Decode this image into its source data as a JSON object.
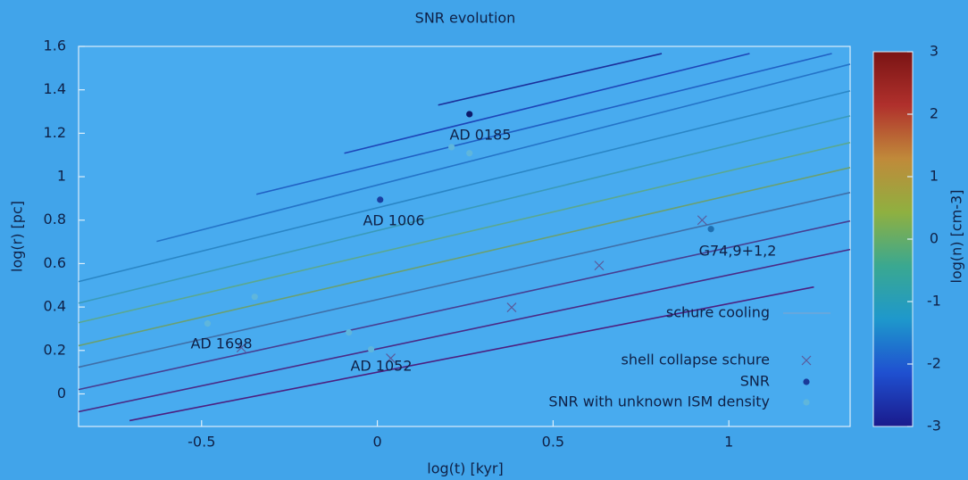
{
  "chart_data": {
    "type": "line",
    "title": "SNR evolution",
    "x_label": "log(t) [kyr]",
    "y_label": "log(r) [pc]",
    "xlim": [
      -0.85,
      1.345
    ],
    "ylim": [
      -0.15,
      1.6
    ],
    "xticks": [
      -0.5,
      0,
      0.5,
      1
    ],
    "yticks": [
      0,
      0.2,
      0.4,
      0.6,
      0.8,
      1,
      1.2,
      1.4,
      1.6
    ],
    "grid": false,
    "legend": "lower right",
    "series": [
      {
        "name": "schure cooling",
        "type": "line",
        "color": "#1b2f9a",
        "x": [
          0.173,
          0.809
        ],
        "values": [
          1.33,
          1.567
        ]
      },
      {
        "type": "line",
        "color": "#1d45b8",
        "x": [
          -0.094,
          1.059
        ],
        "values": [
          1.108,
          1.567
        ]
      },
      {
        "type": "line",
        "color": "#2060c4",
        "x": [
          -0.344,
          1.293
        ],
        "values": [
          0.919,
          1.567
        ]
      },
      {
        "type": "line",
        "color": "#2474c8",
        "x": [
          -0.628,
          1.345
        ],
        "values": [
          0.702,
          1.518
        ]
      },
      {
        "type": "line",
        "color": "#2a86c6",
        "x": [
          -0.85,
          1.345
        ],
        "values": [
          0.517,
          1.395
        ]
      },
      {
        "type": "line",
        "color": "#3a9ab8",
        "x": [
          -0.85,
          1.345
        ],
        "values": [
          0.418,
          1.28
        ]
      },
      {
        "type": "line",
        "color": "#5aa890",
        "x": [
          -0.85,
          1.345
        ],
        "values": [
          0.328,
          1.157
        ]
      },
      {
        "type": "line",
        "color": "#6aa070",
        "x": [
          -0.85,
          1.345
        ],
        "values": [
          0.222,
          1.042
        ]
      },
      {
        "type": "line",
        "color": "#3f6fa8",
        "x": [
          -0.85,
          1.345
        ],
        "values": [
          0.123,
          0.927
        ]
      },
      {
        "type": "line",
        "color": "#473e92",
        "x": [
          -0.85,
          1.345
        ],
        "values": [
          0.02,
          0.796
        ]
      },
      {
        "type": "line",
        "color": "#4a2a86",
        "x": [
          -0.85,
          1.345
        ],
        "values": [
          -0.082,
          0.665
        ]
      },
      {
        "type": "line",
        "color": "#4c1f80",
        "x": [
          -0.705,
          1.242
        ],
        "values": [
          -0.123,
          0.492
        ]
      },
      {
        "name": "shell collapse schure",
        "type": "scatter",
        "marker": "x",
        "color": "#5a5a9a",
        "x": [
          0.631,
          0.382,
          0.038,
          -0.387,
          0.924
        ],
        "values": [
          0.591,
          0.398,
          0.164,
          0.213,
          0.8
        ]
      },
      {
        "name": "SNR",
        "type": "scatter",
        "marker": "dot",
        "color": "#1a3a9a",
        "colors": [
          "#0d1a6b",
          "#1a3fa0",
          "#1f6fb0"
        ],
        "x": [
          0.262,
          0.008,
          0.949
        ],
        "values": [
          1.288,
          0.894,
          0.759
        ]
      },
      {
        "name": "SNR with unknown ISM density",
        "type": "scatter",
        "marker": "dot",
        "color": "#5fb6dc",
        "x": [
          0.211,
          0.262,
          -0.349,
          -0.483,
          -0.081,
          -0.018
        ],
        "values": [
          1.136,
          1.108,
          0.447,
          0.324,
          0.283,
          0.205
        ]
      }
    ],
    "annotations": [
      "AD 0185",
      "AD 1006",
      "G74,9+1,2",
      "AD 1698",
      "AD 1052"
    ],
    "colorbar": {
      "label": "log(n) [cm-3]",
      "lim": [
        -3,
        3
      ],
      "ticks": [
        -3,
        -2,
        -1,
        0,
        1,
        2,
        3
      ],
      "colormap": [
        "#1a1a8c",
        "#1f50d0",
        "#1e98cc",
        "#3aa890",
        "#8fb040",
        "#c08a3a",
        "#b0302c",
        "#7a1414"
      ]
    }
  }
}
